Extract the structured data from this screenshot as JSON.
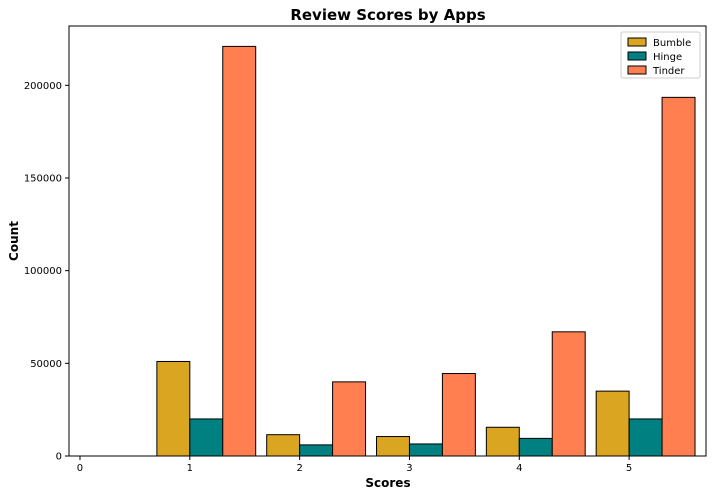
{
  "chart_data": {
    "type": "bar",
    "title": "Review Scores by Apps",
    "xlabel": "Scores",
    "ylabel": "Count",
    "categories": [
      1,
      2,
      3,
      4,
      5
    ],
    "xlim": [
      -0.1,
      5.7
    ],
    "xticks": [
      "0",
      "1",
      "2",
      "3",
      "4",
      "5"
    ],
    "ylim": [
      0,
      232000
    ],
    "yticks": [
      "0",
      "50000",
      "100000",
      "150000",
      "200000"
    ],
    "series": [
      {
        "name": "Bumble",
        "color": "#daa520",
        "values": [
          51000,
          11500,
          10500,
          15500,
          35000
        ]
      },
      {
        "name": "Hinge",
        "color": "#008080",
        "values": [
          20000,
          6000,
          6500,
          9500,
          20000
        ]
      },
      {
        "name": "Tinder",
        "color": "#ff7f50",
        "values": [
          221000,
          40000,
          44500,
          67000,
          193500
        ]
      }
    ],
    "legend": "top-right",
    "grid": false
  }
}
